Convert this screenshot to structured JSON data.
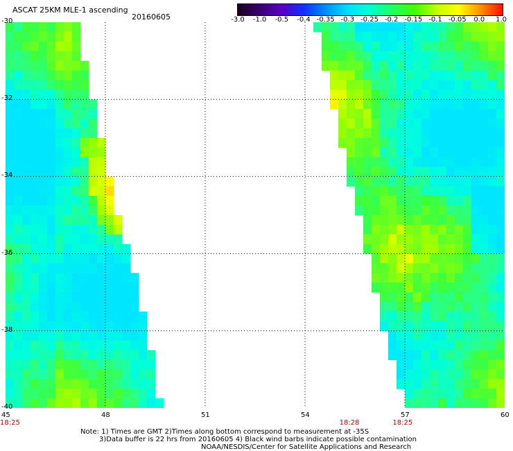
{
  "header": {
    "title": "ASCAT 25KM MLE-1 ascending",
    "date": "20160605"
  },
  "colorbar": {
    "labels": [
      "-3.0",
      "-1.0",
      "-0.5",
      "-0.4",
      "-0.35",
      "-0.3",
      "-0.25",
      "-0.2",
      "-0.15",
      "-0.1",
      "-0.05",
      "0.0",
      "1.0"
    ],
    "colors": [
      "#1a0020",
      "#3a0070",
      "#5a00c0",
      "#1030ff",
      "#0090ff",
      "#00e0ff",
      "#00ffd0",
      "#20ff60",
      "#40ff00",
      "#c0ff00",
      "#ffff00",
      "#ff9000",
      "#ff1000"
    ]
  },
  "axes": {
    "lat_labels": [
      "-30",
      "-32",
      "-34",
      "-36",
      "-38",
      "-40"
    ],
    "lon_labels": [
      "45",
      "48",
      "51",
      "54",
      "57",
      "60"
    ],
    "time_labels": [
      {
        "text": "18:25",
        "lon": 45
      },
      {
        "text": "18:28",
        "lon": 55.2
      },
      {
        "text": "18:25",
        "lon": 56.8
      }
    ]
  },
  "notes": {
    "line1": "Note: 1) Times are GMT 2)Times along bottom correspond to measurement at -35S",
    "line2": "3)Data buffer is 22 hrs from 20160605 4) Black wind barbs indicate possible contamination",
    "line3": "NOAA/NESDIS/Center for Satellite Applications and Research"
  },
  "chart_data": {
    "type": "heatmap",
    "xlabel": "",
    "ylabel": "",
    "xlim": [
      45,
      60
    ],
    "ylim": [
      -40,
      -30
    ],
    "swaths": [
      {
        "east_edge": [
          [
            -30,
            47.2
          ],
          [
            -32,
            47.6
          ],
          [
            -34,
            48.1
          ],
          [
            -36,
            48.7
          ],
          [
            -38,
            49.3
          ],
          [
            -40,
            49.7
          ]
        ]
      },
      {
        "west_edge": [
          [
            -30,
            54.3
          ],
          [
            -32,
            54.8
          ],
          [
            -34,
            55.3
          ],
          [
            -36,
            55.9
          ],
          [
            -38,
            56.4
          ],
          [
            -40,
            57.0
          ]
        ]
      }
    ],
    "value_range": [
      -0.35,
      0.0
    ],
    "typical_value": -0.25
  }
}
